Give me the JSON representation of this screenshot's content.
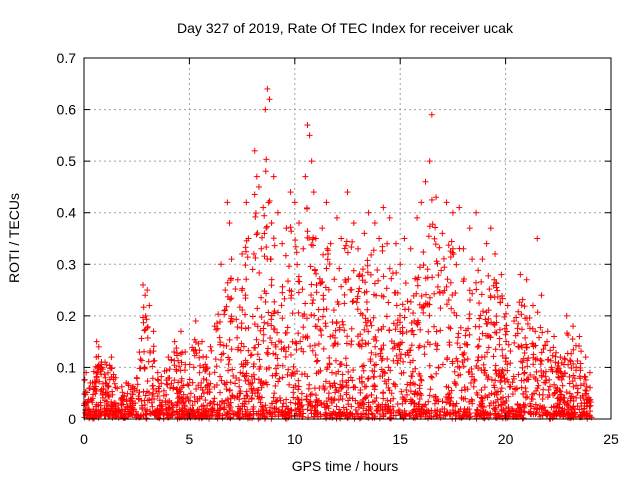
{
  "chart_data": {
    "type": "scatter",
    "title": "Day 327 of 2019, Rate Of TEC Index for receiver ucak",
    "xlabel": "GPS time / hours",
    "ylabel": "ROTI / TECUs",
    "xlim": [
      0,
      25
    ],
    "ylim": [
      0,
      0.7
    ],
    "xticks": [
      "0",
      "5",
      "10",
      "15",
      "20",
      "25"
    ],
    "yticks": [
      "0",
      "0.1",
      "0.2",
      "0.3",
      "0.4",
      "0.5",
      "0.6",
      "0.7"
    ],
    "grid": true,
    "marker": "+",
    "color": "#ff0000",
    "series": [
      {
        "name": "ROTI",
        "points": [
          [
            0.1,
            0.09
          ],
          [
            0.3,
            0.07
          ],
          [
            0.6,
            0.15
          ],
          [
            0.7,
            0.14
          ],
          [
            1.0,
            0.11
          ],
          [
            1.3,
            0.12
          ],
          [
            1.5,
            0.08
          ],
          [
            2.0,
            0.07
          ],
          [
            2.5,
            0.08
          ],
          [
            2.8,
            0.26
          ],
          [
            2.9,
            0.24
          ],
          [
            3.0,
            0.25
          ],
          [
            3.1,
            0.22
          ],
          [
            3.3,
            0.17
          ],
          [
            3.5,
            0.09
          ],
          [
            4.0,
            0.12
          ],
          [
            4.3,
            0.15
          ],
          [
            4.6,
            0.17
          ],
          [
            4.8,
            0.13
          ],
          [
            5.3,
            0.19
          ],
          [
            5.6,
            0.15
          ],
          [
            5.8,
            0.12
          ],
          [
            6.0,
            0.14
          ],
          [
            6.2,
            0.18
          ],
          [
            6.5,
            0.3
          ],
          [
            6.7,
            0.25
          ],
          [
            6.8,
            0.42
          ],
          [
            6.9,
            0.38
          ],
          [
            7.0,
            0.31
          ],
          [
            7.3,
            0.27
          ],
          [
            7.5,
            0.32
          ],
          [
            7.7,
            0.42
          ],
          [
            7.8,
            0.35
          ],
          [
            8.0,
            0.29
          ],
          [
            8.1,
            0.52
          ],
          [
            8.2,
            0.47
          ],
          [
            8.3,
            0.45
          ],
          [
            8.5,
            0.41
          ],
          [
            8.6,
            0.6
          ],
          [
            8.7,
            0.64
          ],
          [
            8.8,
            0.62
          ],
          [
            8.9,
            0.38
          ],
          [
            9.0,
            0.47
          ],
          [
            9.2,
            0.4
          ],
          [
            9.4,
            0.34
          ],
          [
            9.6,
            0.37
          ],
          [
            9.8,
            0.44
          ],
          [
            10.0,
            0.42
          ],
          [
            10.2,
            0.38
          ],
          [
            10.4,
            0.33
          ],
          [
            10.5,
            0.47
          ],
          [
            10.6,
            0.57
          ],
          [
            10.7,
            0.55
          ],
          [
            10.8,
            0.5
          ],
          [
            10.9,
            0.44
          ],
          [
            11.0,
            0.35
          ],
          [
            11.3,
            0.37
          ],
          [
            11.5,
            0.42
          ],
          [
            11.7,
            0.34
          ],
          [
            12.0,
            0.39
          ],
          [
            12.2,
            0.35
          ],
          [
            12.5,
            0.44
          ],
          [
            12.8,
            0.38
          ],
          [
            13.0,
            0.33
          ],
          [
            13.3,
            0.36
          ],
          [
            13.5,
            0.4
          ],
          [
            13.8,
            0.38
          ],
          [
            14.0,
            0.35
          ],
          [
            14.2,
            0.41
          ],
          [
            14.5,
            0.39
          ],
          [
            14.8,
            0.34
          ],
          [
            15.0,
            0.3
          ],
          [
            15.2,
            0.35
          ],
          [
            15.5,
            0.33
          ],
          [
            15.8,
            0.39
          ],
          [
            16.0,
            0.42
          ],
          [
            16.2,
            0.46
          ],
          [
            16.4,
            0.5
          ],
          [
            16.5,
            0.59
          ],
          [
            16.7,
            0.43
          ],
          [
            17.0,
            0.36
          ],
          [
            17.2,
            0.42
          ],
          [
            17.5,
            0.4
          ],
          [
            17.8,
            0.41
          ],
          [
            18.0,
            0.33
          ],
          [
            18.3,
            0.37
          ],
          [
            18.6,
            0.4
          ],
          [
            18.9,
            0.31
          ],
          [
            19.1,
            0.34
          ],
          [
            19.3,
            0.37
          ],
          [
            19.5,
            0.32
          ],
          [
            19.8,
            0.28
          ],
          [
            20.1,
            0.22
          ],
          [
            20.4,
            0.19
          ],
          [
            20.7,
            0.28
          ],
          [
            21.0,
            0.27
          ],
          [
            21.3,
            0.22
          ],
          [
            21.5,
            0.35
          ],
          [
            21.7,
            0.24
          ],
          [
            22.0,
            0.17
          ],
          [
            22.3,
            0.16
          ],
          [
            22.6,
            0.12
          ],
          [
            22.9,
            0.2
          ],
          [
            23.2,
            0.18
          ],
          [
            23.5,
            0.16
          ],
          [
            23.8,
            0.12
          ],
          [
            24.0,
            0.09
          ]
        ]
      }
    ]
  }
}
